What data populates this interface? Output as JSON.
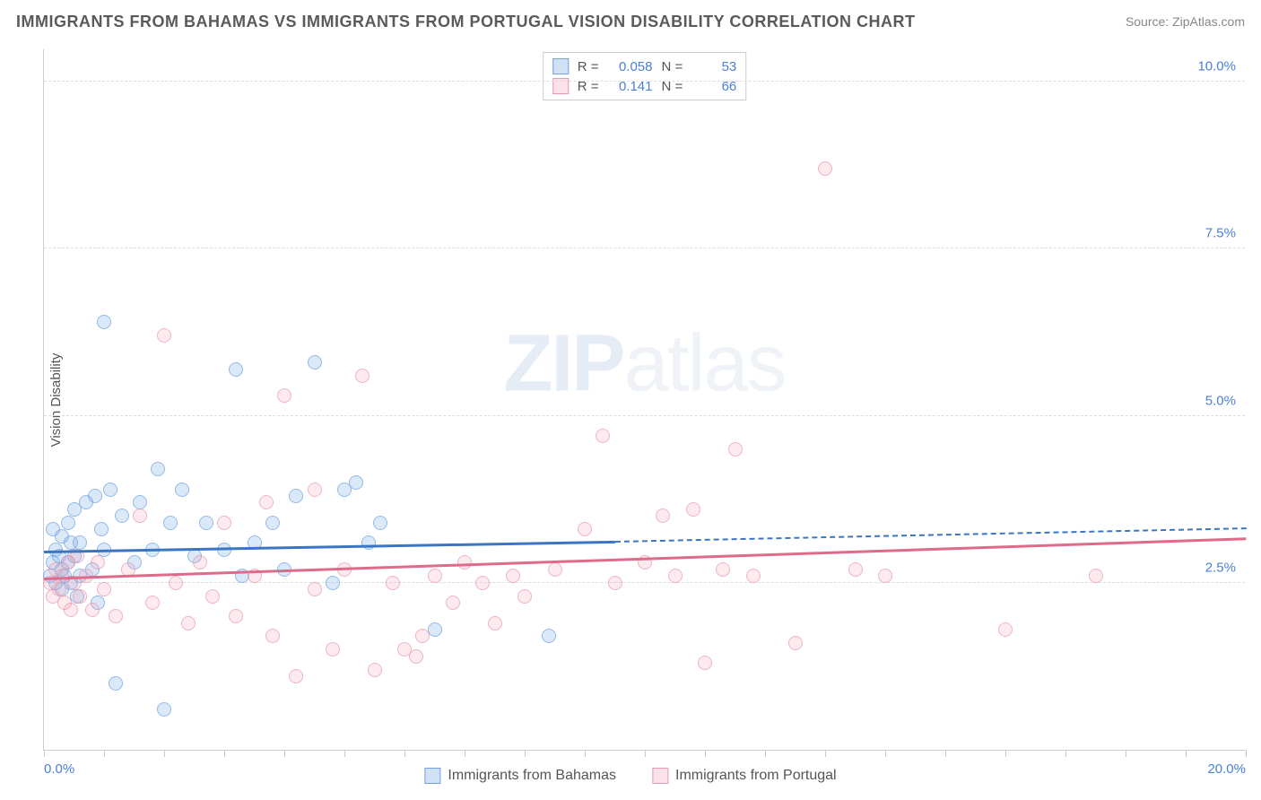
{
  "title": "IMMIGRANTS FROM BAHAMAS VS IMMIGRANTS FROM PORTUGAL VISION DISABILITY CORRELATION CHART",
  "source": "Source: ZipAtlas.com",
  "y_axis_label": "Vision Disability",
  "watermark": {
    "bold": "ZIP",
    "light": "atlas"
  },
  "chart": {
    "type": "scatter",
    "xlim": [
      0,
      20
    ],
    "ylim": [
      0,
      10.5
    ],
    "x_ticks_minor_step": 1,
    "x_tick_labels": [
      {
        "x": 0,
        "label": "0.0%",
        "align": "left"
      },
      {
        "x": 20,
        "label": "20.0%",
        "align": "right"
      }
    ],
    "y_ticks": [
      {
        "y": 2.5,
        "label": "2.5%"
      },
      {
        "y": 5.0,
        "label": "5.0%"
      },
      {
        "y": 7.5,
        "label": "7.5%"
      },
      {
        "y": 10.0,
        "label": "10.0%"
      }
    ],
    "grid_color": "#dddddd",
    "background_color": "#ffffff"
  },
  "series": [
    {
      "name": "Immigrants from Bahamas",
      "fill": "rgba(120,170,230,0.35)",
      "stroke": "#6fa3e0",
      "line_color": "#3b76c4",
      "R": "0.058",
      "N": "53",
      "trend": {
        "x1": 0,
        "y1": 2.95,
        "x2": 9.5,
        "y2": 3.1,
        "dash_from": 9.5,
        "x3": 20,
        "y3": 3.3
      },
      "points": [
        [
          0.1,
          2.6
        ],
        [
          0.15,
          2.8
        ],
        [
          0.2,
          2.5
        ],
        [
          0.2,
          3.0
        ],
        [
          0.25,
          2.9
        ],
        [
          0.3,
          2.7
        ],
        [
          0.3,
          3.2
        ],
        [
          0.35,
          2.6
        ],
        [
          0.4,
          2.8
        ],
        [
          0.4,
          3.4
        ],
        [
          0.45,
          2.5
        ],
        [
          0.5,
          3.6
        ],
        [
          0.5,
          2.9
        ],
        [
          0.55,
          2.3
        ],
        [
          0.6,
          3.1
        ],
        [
          0.7,
          3.7
        ],
        [
          0.8,
          2.7
        ],
        [
          0.85,
          3.8
        ],
        [
          0.9,
          2.2
        ],
        [
          0.95,
          3.3
        ],
        [
          1.0,
          6.4
        ],
        [
          1.0,
          3.0
        ],
        [
          1.1,
          3.9
        ],
        [
          1.2,
          1.0
        ],
        [
          1.3,
          3.5
        ],
        [
          1.5,
          2.8
        ],
        [
          1.6,
          3.7
        ],
        [
          1.8,
          3.0
        ],
        [
          1.9,
          4.2
        ],
        [
          2.0,
          0.6
        ],
        [
          2.1,
          3.4
        ],
        [
          2.3,
          3.9
        ],
        [
          2.5,
          2.9
        ],
        [
          2.7,
          3.4
        ],
        [
          3.0,
          3.0
        ],
        [
          3.2,
          5.7
        ],
        [
          3.3,
          2.6
        ],
        [
          3.5,
          3.1
        ],
        [
          3.8,
          3.4
        ],
        [
          4.0,
          2.7
        ],
        [
          4.2,
          3.8
        ],
        [
          4.5,
          5.8
        ],
        [
          4.8,
          2.5
        ],
        [
          5.0,
          3.9
        ],
        [
          5.2,
          4.0
        ],
        [
          5.4,
          3.1
        ],
        [
          5.6,
          3.4
        ],
        [
          6.5,
          1.8
        ],
        [
          8.4,
          1.7
        ],
        [
          0.3,
          2.4
        ],
        [
          0.6,
          2.6
        ],
        [
          0.15,
          3.3
        ],
        [
          0.45,
          3.1
        ]
      ]
    },
    {
      "name": "Immigrants from Portugal",
      "fill": "rgba(240,160,180,0.3)",
      "stroke": "#e89bb0",
      "line_color": "#e06a8a",
      "R": "0.141",
      "N": "66",
      "trend": {
        "x1": 0,
        "y1": 2.55,
        "x2": 20,
        "y2": 3.15
      },
      "points": [
        [
          0.1,
          2.5
        ],
        [
          0.15,
          2.3
        ],
        [
          0.2,
          2.7
        ],
        [
          0.25,
          2.4
        ],
        [
          0.3,
          2.6
        ],
        [
          0.35,
          2.2
        ],
        [
          0.4,
          2.8
        ],
        [
          0.45,
          2.1
        ],
        [
          0.5,
          2.5
        ],
        [
          0.55,
          2.9
        ],
        [
          0.6,
          2.3
        ],
        [
          0.7,
          2.6
        ],
        [
          0.8,
          2.1
        ],
        [
          0.9,
          2.8
        ],
        [
          1.0,
          2.4
        ],
        [
          1.2,
          2.0
        ],
        [
          1.4,
          2.7
        ],
        [
          1.6,
          3.5
        ],
        [
          1.8,
          2.2
        ],
        [
          2.0,
          6.2
        ],
        [
          2.2,
          2.5
        ],
        [
          2.4,
          1.9
        ],
        [
          2.6,
          2.8
        ],
        [
          2.8,
          2.3
        ],
        [
          3.0,
          3.4
        ],
        [
          3.2,
          2.0
        ],
        [
          3.5,
          2.6
        ],
        [
          3.8,
          1.7
        ],
        [
          4.0,
          5.3
        ],
        [
          4.2,
          1.1
        ],
        [
          4.5,
          2.4
        ],
        [
          4.8,
          1.5
        ],
        [
          5.0,
          2.7
        ],
        [
          5.3,
          5.6
        ],
        [
          5.5,
          1.2
        ],
        [
          5.8,
          2.5
        ],
        [
          6.0,
          1.5
        ],
        [
          6.3,
          1.7
        ],
        [
          6.5,
          2.6
        ],
        [
          6.8,
          2.2
        ],
        [
          7.0,
          2.8
        ],
        [
          7.3,
          2.5
        ],
        [
          7.5,
          1.9
        ],
        [
          7.8,
          2.6
        ],
        [
          8.0,
          2.3
        ],
        [
          8.5,
          2.7
        ],
        [
          9.0,
          3.3
        ],
        [
          9.5,
          2.5
        ],
        [
          10.0,
          2.8
        ],
        [
          10.3,
          3.5
        ],
        [
          10.5,
          2.6
        ],
        [
          10.8,
          3.6
        ],
        [
          11.0,
          1.3
        ],
        [
          11.3,
          2.7
        ],
        [
          11.5,
          4.5
        ],
        [
          11.8,
          2.6
        ],
        [
          12.5,
          1.6
        ],
        [
          13.0,
          8.7
        ],
        [
          13.5,
          2.7
        ],
        [
          14.0,
          2.6
        ],
        [
          16.0,
          1.8
        ],
        [
          17.5,
          2.6
        ],
        [
          3.7,
          3.7
        ],
        [
          4.5,
          3.9
        ],
        [
          6.2,
          1.4
        ],
        [
          9.3,
          4.7
        ]
      ]
    }
  ],
  "stats_legend_labels": {
    "R": "R =",
    "N": "N ="
  }
}
